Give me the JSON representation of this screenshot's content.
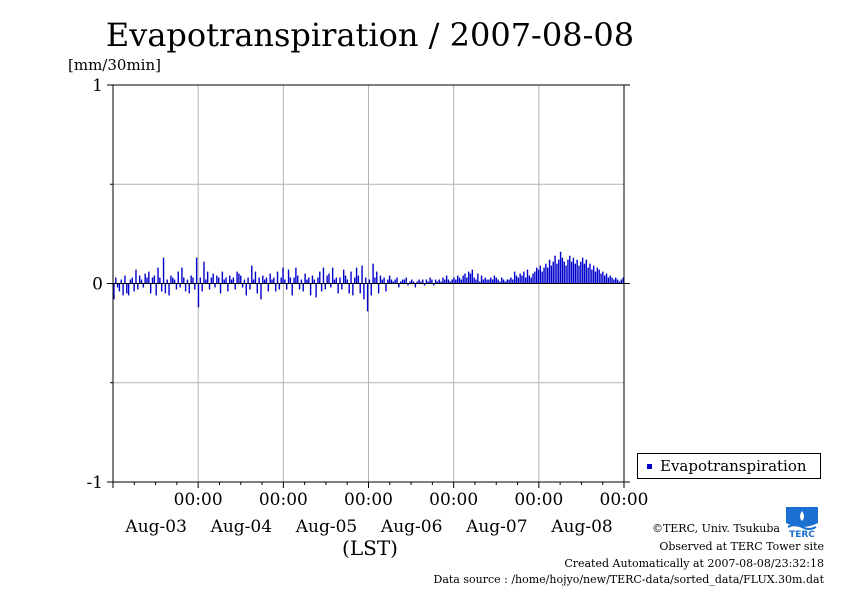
{
  "chart_data": {
    "type": "bar",
    "title": "Evapotranspiration / 2007-08-08",
    "ylabel": "[mm/30min]",
    "xlabel": "(LST)",
    "ylim": [
      -1,
      1
    ],
    "yticks": [
      "-1",
      "0",
      "1"
    ],
    "xticks": [
      {
        "time": "00:00",
        "date": "Aug-03"
      },
      {
        "time": "00:00",
        "date": "Aug-04"
      },
      {
        "time": "00:00",
        "date": "Aug-05"
      },
      {
        "time": "00:00",
        "date": "Aug-06"
      },
      {
        "time": "00:00",
        "date": "Aug-07"
      },
      {
        "time": "00:00",
        "date": "Aug-08"
      }
    ],
    "x_range_days": [
      -1,
      5
    ],
    "grid": true,
    "legend_position": "right",
    "series": [
      {
        "name": "Evapotranspiration",
        "color": "#0000cc",
        "values": [
          -0.08,
          0.03,
          -0.02,
          -0.04,
          0.02,
          -0.06,
          0.04,
          -0.05,
          -0.06,
          0.02,
          0.03,
          -0.04,
          0.07,
          -0.03,
          0.04,
          0.02,
          -0.02,
          0.05,
          0.03,
          0.06,
          -0.05,
          0.03,
          0.04,
          -0.06,
          0.08,
          0.03,
          -0.04,
          0.13,
          -0.05,
          0.02,
          -0.06,
          0.04,
          0.03,
          0.02,
          -0.03,
          0.06,
          -0.02,
          0.08,
          0.03,
          -0.04,
          0.02,
          -0.05,
          0.04,
          0.03,
          -0.03,
          0.13,
          -0.12,
          0.03,
          -0.04,
          0.11,
          0.02,
          0.06,
          -0.03,
          0.03,
          0.05,
          -0.02,
          0.04,
          0.03,
          -0.05,
          0.06,
          0.02,
          0.03,
          -0.04,
          0.04,
          0.02,
          0.03,
          -0.03,
          0.06,
          0.05,
          0.04,
          -0.02,
          0.02,
          -0.06,
          0.03,
          -0.03,
          0.09,
          0.02,
          0.06,
          -0.05,
          0.03,
          -0.08,
          0.04,
          0.02,
          0.03,
          -0.04,
          0.05,
          0.02,
          0.03,
          -0.04,
          0.06,
          -0.03,
          0.03,
          0.08,
          0.02,
          -0.03,
          0.07,
          0.03,
          -0.06,
          0.03,
          0.08,
          0.04,
          -0.03,
          0.02,
          -0.04,
          0.05,
          0.02,
          0.03,
          -0.06,
          0.04,
          0.02,
          -0.07,
          0.03,
          0.06,
          -0.04,
          0.08,
          -0.03,
          0.04,
          0.05,
          -0.02,
          0.08,
          0.02,
          0.03,
          -0.05,
          0.03,
          -0.03,
          0.07,
          0.04,
          0.02,
          -0.05,
          0.06,
          -0.06,
          0.03,
          0.08,
          0.04,
          -0.05,
          0.09,
          -0.08,
          0.03,
          -0.14,
          0.02,
          -0.06,
          0.1,
          0.03,
          0.06,
          -0.05,
          0.04,
          0.02,
          0.03,
          -0.04,
          0.02,
          0.04,
          0.02,
          0.01,
          0.02,
          0.03,
          -0.02,
          0.01,
          0.02,
          0.02,
          0.03,
          -0.01,
          0.01,
          0.02,
          0.01,
          -0.02,
          0.01,
          0.02,
          0.01,
          0.02,
          -0.01,
          0.02,
          0.01,
          0.03,
          0.02,
          -0.01,
          0.02,
          0.01,
          0.02,
          0.01,
          0.03,
          0.02,
          0.04,
          0.02,
          0.01,
          0.02,
          0.03,
          0.02,
          0.04,
          0.03,
          0.02,
          0.04,
          0.05,
          0.03,
          0.06,
          0.05,
          0.07,
          0.03,
          0.02,
          0.05,
          0.01,
          0.04,
          0.02,
          0.03,
          0.02,
          0.02,
          0.03,
          0.02,
          0.04,
          0.03,
          0.02,
          0.01,
          0.03,
          0.02,
          0.01,
          0.02,
          0.02,
          0.03,
          0.02,
          0.06,
          0.04,
          0.03,
          0.05,
          0.04,
          0.06,
          0.03,
          0.07,
          0.04,
          0.03,
          0.05,
          0.06,
          0.08,
          0.07,
          0.09,
          0.06,
          0.08,
          0.1,
          0.08,
          0.12,
          0.09,
          0.11,
          0.14,
          0.1,
          0.12,
          0.16,
          0.13,
          0.11,
          0.09,
          0.12,
          0.14,
          0.11,
          0.13,
          0.1,
          0.12,
          0.09,
          0.11,
          0.13,
          0.1,
          0.12,
          0.08,
          0.1,
          0.07,
          0.09,
          0.06,
          0.08,
          0.07,
          0.05,
          0.06,
          0.04,
          0.05,
          0.03,
          0.04,
          0.03,
          0.02,
          0.03,
          0.02,
          0.01,
          0.02,
          0.03
        ]
      }
    ]
  },
  "footer": {
    "copyright": "©TERC, Univ. Tsukuba",
    "observed": "Observed at TERC Tower site",
    "created": "Created Automatically at 2007-08-08/23:32:18",
    "source": "Data source : /home/hojyo/new/TERC-data/sorted_data/FLUX.30m.dat"
  },
  "logo": {
    "text": "TERC",
    "color": "#1a6fd0"
  }
}
